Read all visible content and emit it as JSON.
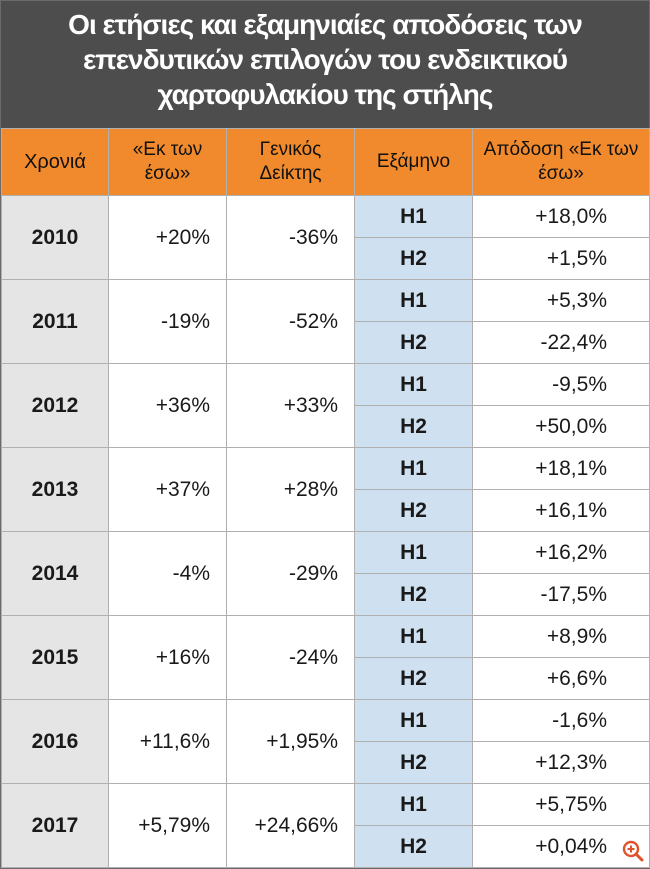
{
  "title": {
    "lines": [
      "Οι ετήσιες και εξαμηνιαίες αποδόσεις των",
      "επενδυτικών επιλογών του ενδεικτικού",
      "χαρτοφυλακίου της στήλης"
    ]
  },
  "colors": {
    "title_bg": "#4d4d4d",
    "header_bg": "#f08a2c",
    "year_bg": "#e5e5e5",
    "half_bg": "#cfe0f0"
  },
  "icons": {
    "zoom": "zoom-in-icon"
  },
  "chart_data": {
    "type": "table",
    "columns": [
      "Χρονιά",
      "«Εκ των έσω»",
      "Γενικός Δείκτης",
      "Εξάμηνο",
      "Απόδοση «Εκ των έσω»"
    ],
    "rows": [
      {
        "year": "2010",
        "insider": "+20%",
        "index": "-36%",
        "halves": [
          {
            "h": "H1",
            "ret": "+18,0%"
          },
          {
            "h": "H2",
            "ret": "+1,5%"
          }
        ]
      },
      {
        "year": "2011",
        "insider": "-19%",
        "index": "-52%",
        "halves": [
          {
            "h": "H1",
            "ret": "+5,3%"
          },
          {
            "h": "H2",
            "ret": "-22,4%"
          }
        ]
      },
      {
        "year": "2012",
        "insider": "+36%",
        "index": "+33%",
        "halves": [
          {
            "h": "H1",
            "ret": "-9,5%"
          },
          {
            "h": "H2",
            "ret": "+50,0%"
          }
        ]
      },
      {
        "year": "2013",
        "insider": "+37%",
        "index": "+28%",
        "halves": [
          {
            "h": "H1",
            "ret": "+18,1%"
          },
          {
            "h": "H2",
            "ret": "+16,1%"
          }
        ]
      },
      {
        "year": "2014",
        "insider": "-4%",
        "index": "-29%",
        "halves": [
          {
            "h": "H1",
            "ret": "+16,2%"
          },
          {
            "h": "H2",
            "ret": "-17,5%"
          }
        ]
      },
      {
        "year": "2015",
        "insider": "+16%",
        "index": "-24%",
        "halves": [
          {
            "h": "H1",
            "ret": "+8,9%"
          },
          {
            "h": "H2",
            "ret": "+6,6%"
          }
        ]
      },
      {
        "year": "2016",
        "insider": "+11,6%",
        "index": "+1,95%",
        "halves": [
          {
            "h": "H1",
            "ret": "-1,6%"
          },
          {
            "h": "H2",
            "ret": "+12,3%"
          }
        ]
      },
      {
        "year": "2017",
        "insider": "+5,79%",
        "index": "+24,66%",
        "halves": [
          {
            "h": "H1",
            "ret": "+5,75%"
          },
          {
            "h": "H2",
            "ret": "+0,04%"
          }
        ]
      }
    ]
  }
}
